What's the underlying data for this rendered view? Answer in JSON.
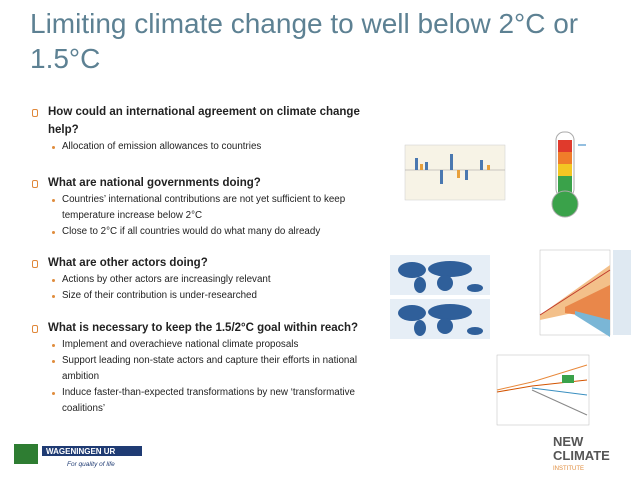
{
  "title": "Limiting climate change to well below 2°C or 1.5°C",
  "sections": [
    {
      "heading": "How could an international agreement on climate change help?",
      "bullets": [
        "Allocation of emission allowances to countries"
      ]
    },
    {
      "heading": "What are national governments doing?",
      "bullets": [
        "Countries’ international contributions are not yet sufficient to keep temperature increase below 2°C",
        "Close to 2°C if all countries would do what many do already"
      ]
    },
    {
      "heading": "What are other actors doing?",
      "bullets": [
        "Actions by other actors are increasingly relevant",
        "Size of their contribution is under-researched"
      ]
    },
    {
      "heading": "What is necessary to keep the 1.5/2°C goal within reach?",
      "bullets": [
        "Implement and overachieve national climate proposals",
        "Support leading non-state actors and capture their efforts in national ambition",
        "Induce faster-than-expected transformations by new ‘transformative coalitions’"
      ]
    }
  ],
  "logos": {
    "wageningen": "WAGENINGEN UR",
    "wageningen_tagline": "For quality of life",
    "newclimate_1": "NEW",
    "newclimate_2": "CLIMATE",
    "newclimate_3": "INSTITUTE"
  }
}
